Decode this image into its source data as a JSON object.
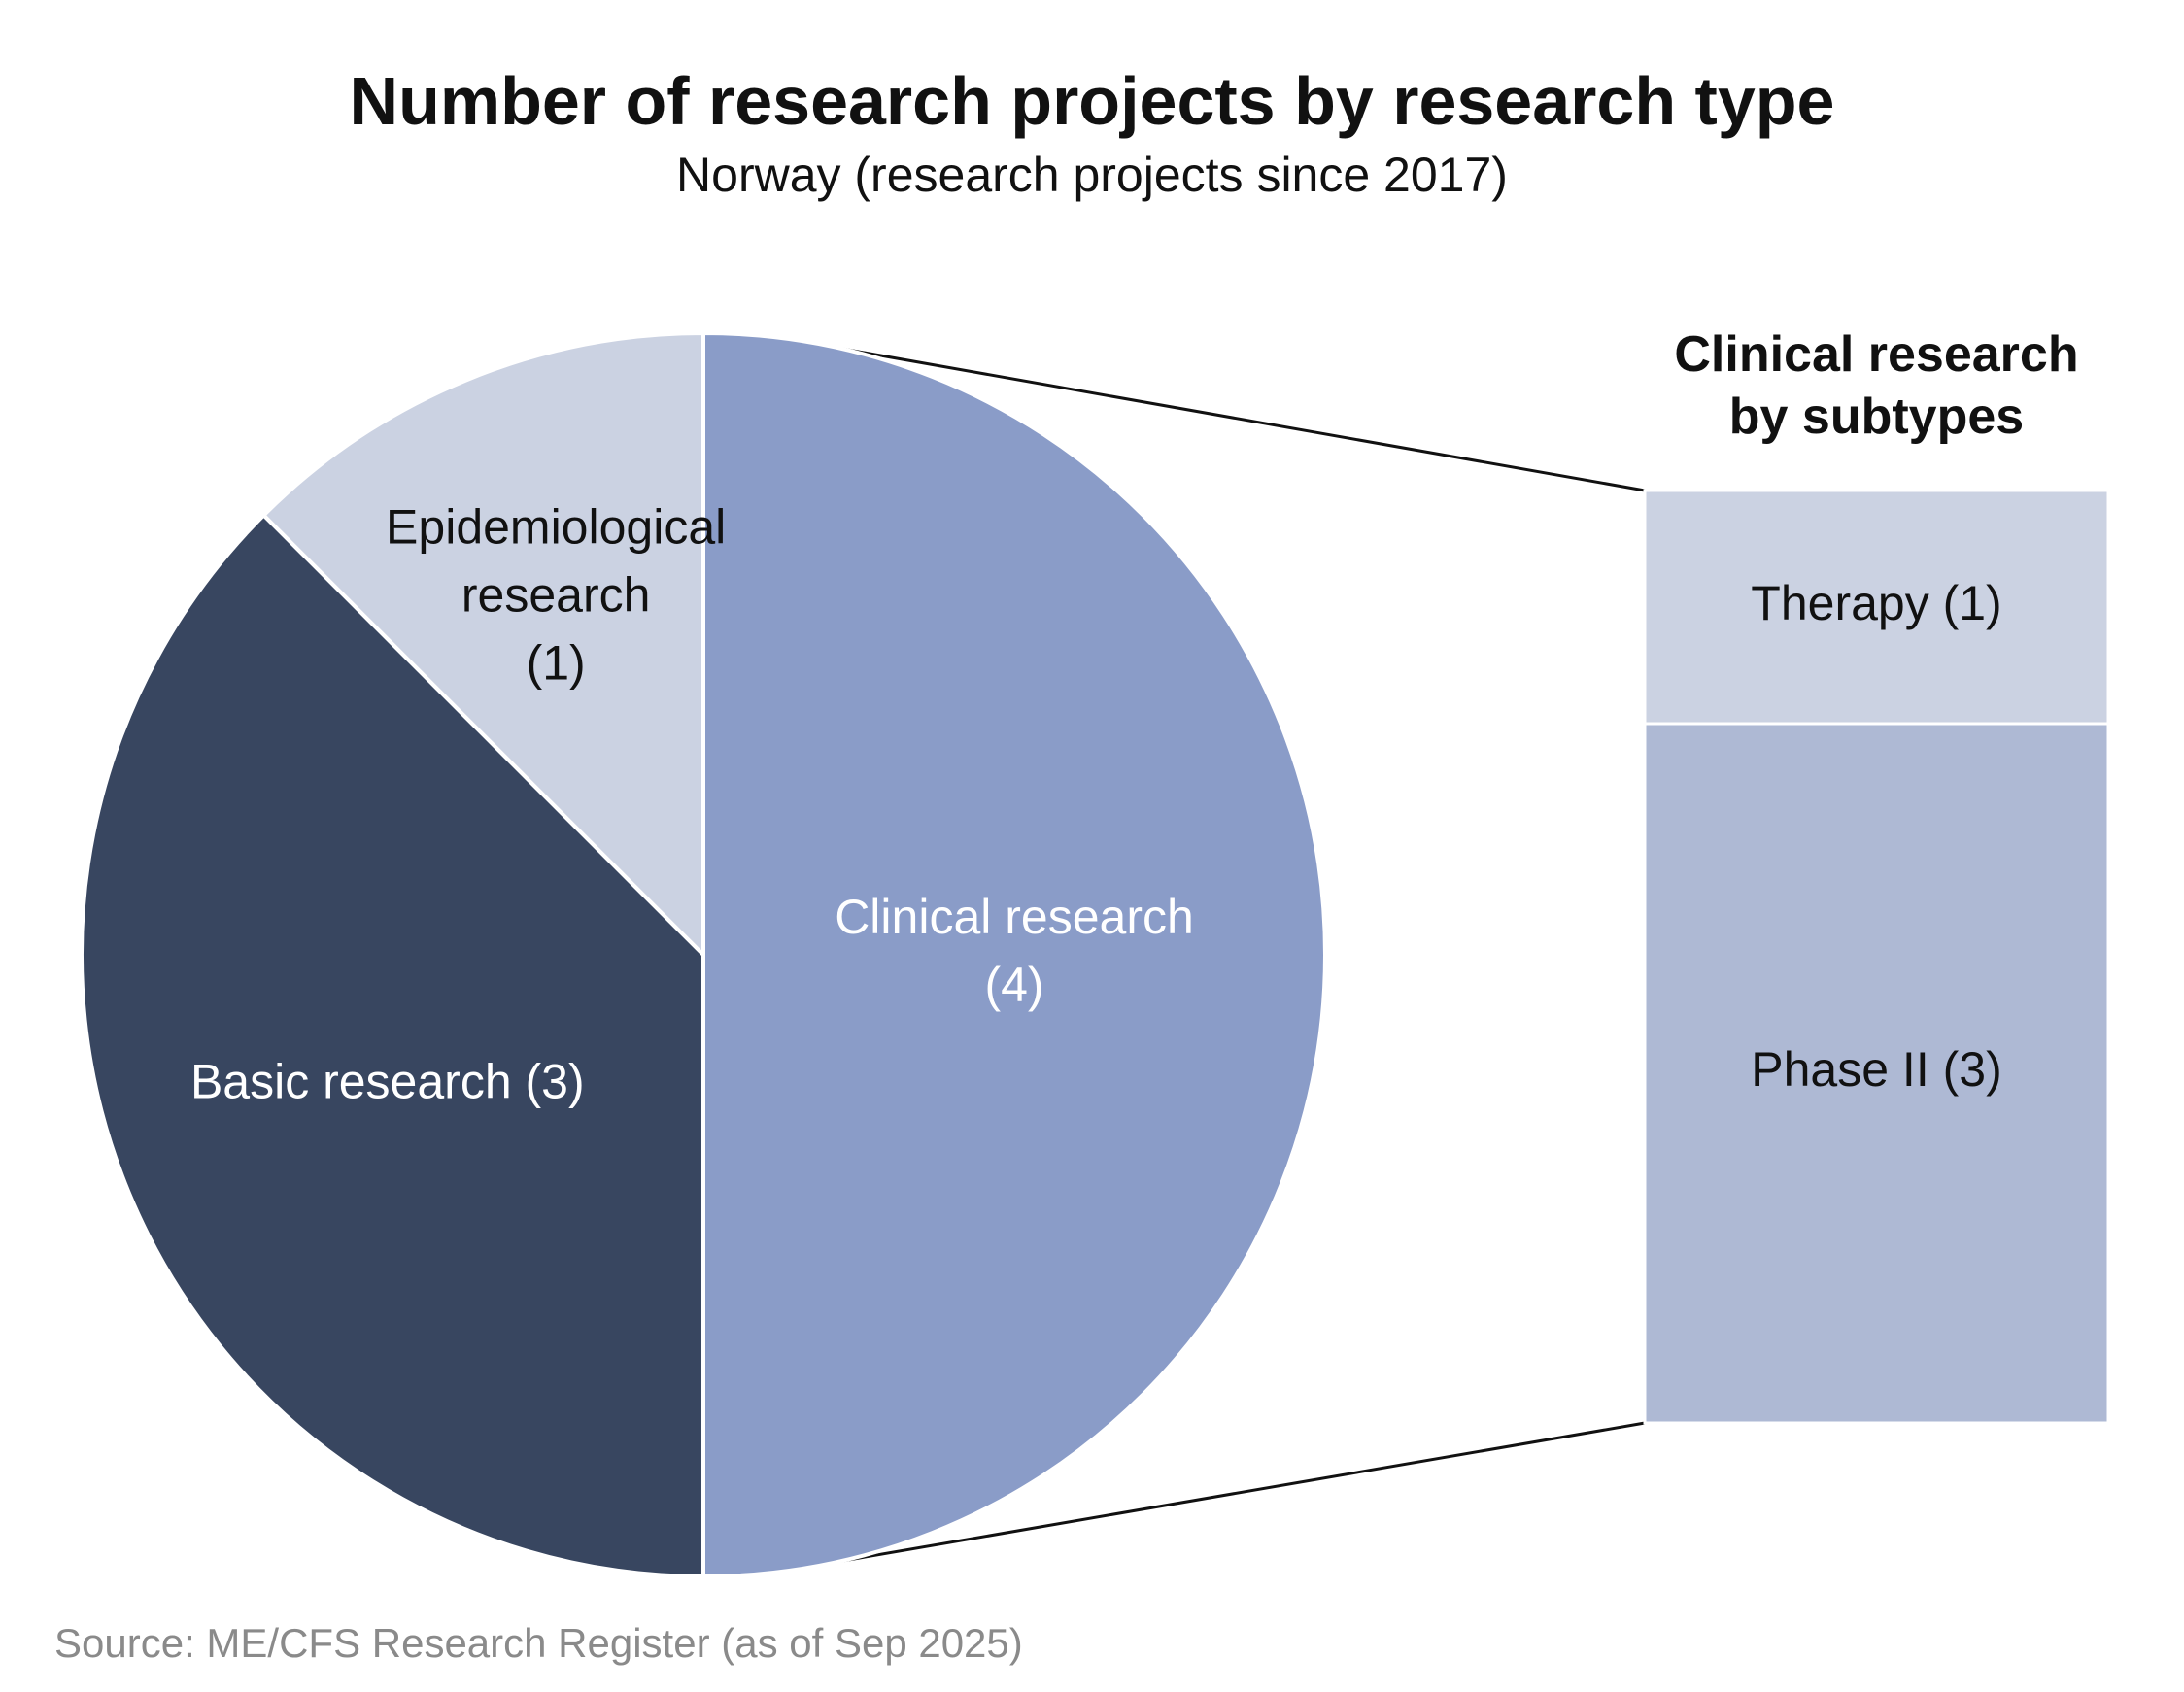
{
  "chart_data": {
    "type": "bar-of-pie",
    "title": "Number of research projects by research type",
    "subtitle": "Norway (research projects since 2017)",
    "source": "Source: ME/CFS Research Register (as of Sep 2025)",
    "pie": {
      "slices": [
        {
          "label": [
            "Clinical research",
            "(4)"
          ],
          "value": 4,
          "color": "#8a9cc8",
          "text_color": "#ffffff"
        },
        {
          "label": [
            "Basic research (3)"
          ],
          "value": 3,
          "color": "#384660",
          "text_color": "#ffffff"
        },
        {
          "label": [
            "Epidemiological",
            "research",
            "(1)"
          ],
          "value": 1,
          "color": "#cbd2e2",
          "text_color": "#111111"
        }
      ]
    },
    "breakdown": {
      "title": [
        "Clinical research",
        "by subtypes"
      ],
      "of": "Clinical research",
      "segments": [
        {
          "label": "Therapy (1)",
          "value": 1,
          "color": "#cbd2e2"
        },
        {
          "label": "Phase II (3)",
          "value": 3,
          "color": "#aeb9d4"
        }
      ]
    }
  }
}
